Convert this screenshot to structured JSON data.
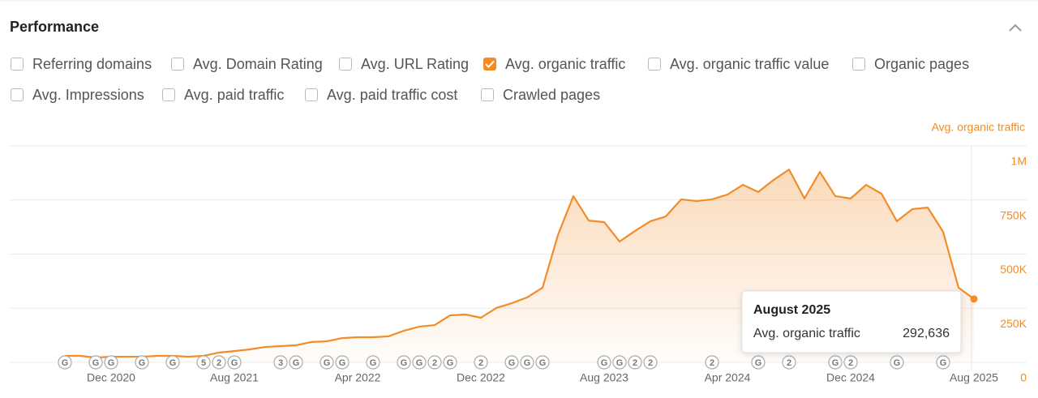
{
  "header": {
    "title": "Performance"
  },
  "checkboxes": [
    {
      "label": "Referring domains",
      "checked": false
    },
    {
      "label": "Avg. Domain Rating",
      "checked": false
    },
    {
      "label": "Avg. URL Rating",
      "checked": false
    },
    {
      "label": "Avg. organic traffic",
      "checked": true
    },
    {
      "label": "Avg. organic traffic value",
      "checked": false
    },
    {
      "label": "Organic pages",
      "checked": false
    },
    {
      "label": "Avg. Impressions",
      "checked": false
    },
    {
      "label": "Avg. paid traffic",
      "checked": false
    },
    {
      "label": "Avg. paid traffic cost",
      "checked": false
    },
    {
      "label": "Crawled pages",
      "checked": false
    }
  ],
  "chart_data": {
    "type": "area",
    "y_axis_label": "Avg. organic traffic",
    "categories": [
      null,
      null,
      null,
      "Dec 2020",
      null,
      null,
      null,
      null,
      null,
      null,
      null,
      "Aug 2021",
      null,
      null,
      null,
      null,
      null,
      null,
      null,
      "Apr 2022",
      null,
      null,
      null,
      null,
      null,
      null,
      null,
      "Dec 2022",
      null,
      null,
      null,
      null,
      null,
      null,
      null,
      "Aug 2023",
      null,
      null,
      null,
      null,
      null,
      null,
      null,
      "Apr 2024",
      null,
      null,
      null,
      null,
      null,
      null,
      null,
      "Dec 2024",
      null,
      null,
      null,
      null,
      null,
      null,
      null,
      "Aug 2025"
    ],
    "series": [
      {
        "name": "Avg. organic traffic",
        "color": "#f28c28",
        "values": [
          30000,
          30000,
          22000,
          26000,
          26000,
          26000,
          30000,
          30000,
          26000,
          30000,
          45000,
          52000,
          60000,
          71000,
          75000,
          79000,
          94000,
          97000,
          112000,
          116000,
          116000,
          120000,
          146000,
          165000,
          172000,
          217000,
          221000,
          206000,
          251000,
          273000,
          300000,
          345000,
          588000,
          768000,
          655000,
          648000,
          558000,
          607000,
          652000,
          674000,
          753000,
          745000,
          753000,
          775000,
          820000,
          787000,
          843000,
          891000,
          757000,
          880000,
          768000,
          757000,
          820000,
          779000,
          652000,
          708000,
          715000,
          603000,
          345000,
          292636
        ]
      }
    ],
    "markers": [
      "G",
      null,
      "G",
      "G",
      null,
      "G",
      null,
      "G",
      null,
      "5",
      "2",
      "G",
      null,
      null,
      "3",
      "G",
      null,
      "G",
      "G",
      null,
      "G",
      null,
      "G",
      "G",
      "2",
      "G",
      null,
      "2",
      null,
      "G",
      "G",
      "G",
      null,
      null,
      null,
      "G",
      "G",
      "2",
      "2",
      null,
      null,
      null,
      "2",
      null,
      null,
      "G",
      null,
      "2",
      null,
      null,
      "G",
      "2",
      null,
      null,
      "G",
      null,
      null,
      "G",
      null,
      null
    ],
    "ylim": [
      0,
      1000000
    ],
    "yticks": [
      0,
      {
        "value": 250000,
        "label": "250K"
      },
      {
        "value": 500000,
        "label": "500K"
      },
      {
        "value": 750000,
        "label": "750K"
      },
      {
        "value": 1000000,
        "label": "1M"
      }
    ],
    "grid": true
  },
  "tooltip": {
    "title": "August 2025",
    "label": "Avg. organic traffic",
    "value": "292,636"
  }
}
